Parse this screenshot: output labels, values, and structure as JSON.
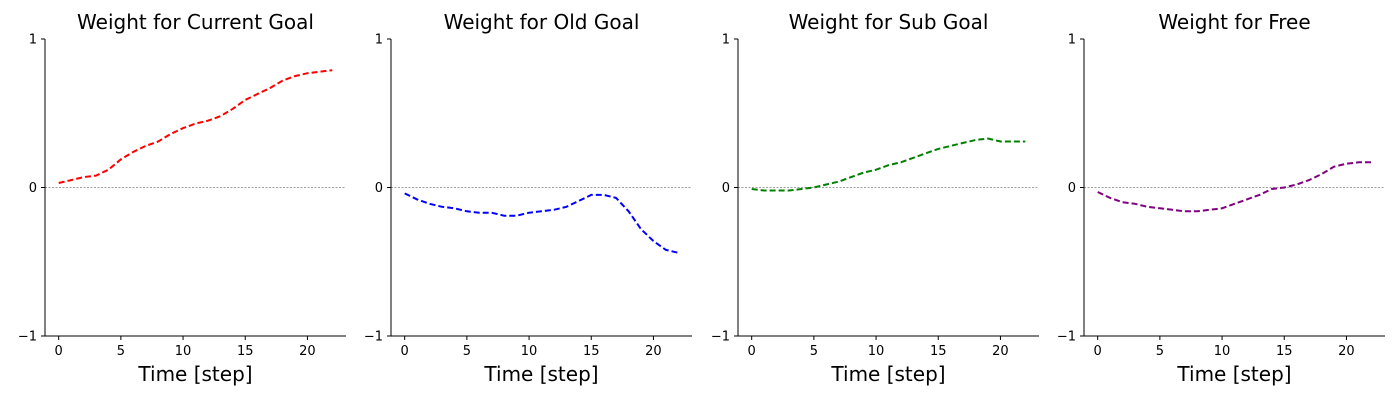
{
  "chart_data": [
    {
      "type": "line",
      "title": "Weight for Current Goal",
      "xlabel": "Time [step]",
      "ylabel": "",
      "xlim": [
        -1.1,
        23.1
      ],
      "ylim": [
        -1,
        1
      ],
      "xticks": [
        "0",
        "5",
        "10",
        "15",
        "20"
      ],
      "yticks": [
        "1",
        "0",
        "−1"
      ],
      "color": "#ff0000",
      "series": [
        {
          "x": [
            0,
            1,
            2,
            3,
            4,
            5,
            6,
            7,
            8,
            9,
            10,
            11,
            12,
            13,
            14,
            15,
            16,
            17,
            18,
            19,
            20,
            21,
            22
          ],
          "values": [
            0.03,
            0.05,
            0.07,
            0.08,
            0.12,
            0.19,
            0.24,
            0.28,
            0.31,
            0.36,
            0.4,
            0.43,
            0.45,
            0.48,
            0.53,
            0.59,
            0.63,
            0.67,
            0.72,
            0.75,
            0.77,
            0.78,
            0.79
          ]
        }
      ]
    },
    {
      "type": "line",
      "title": "Weight for Old Goal",
      "xlabel": "Time [step]",
      "ylabel": "",
      "xlim": [
        -1.1,
        23.1
      ],
      "ylim": [
        -1,
        1
      ],
      "xticks": [
        "0",
        "5",
        "10",
        "15",
        "20"
      ],
      "yticks": [
        "1",
        "0",
        "−1"
      ],
      "color": "#0000ff",
      "series": [
        {
          "x": [
            0,
            1,
            2,
            3,
            4,
            5,
            6,
            7,
            8,
            9,
            10,
            11,
            12,
            13,
            14,
            15,
            16,
            17,
            18,
            19,
            20,
            21,
            22
          ],
          "values": [
            -0.04,
            -0.08,
            -0.11,
            -0.13,
            -0.14,
            -0.16,
            -0.17,
            -0.17,
            -0.19,
            -0.19,
            -0.17,
            -0.16,
            -0.15,
            -0.13,
            -0.09,
            -0.05,
            -0.05,
            -0.07,
            -0.16,
            -0.28,
            -0.36,
            -0.42,
            -0.44
          ]
        }
      ]
    },
    {
      "type": "line",
      "title": "Weight for Sub Goal",
      "xlabel": "Time [step]",
      "ylabel": "",
      "xlim": [
        -1.1,
        23.1
      ],
      "ylim": [
        -1,
        1
      ],
      "xticks": [
        "0",
        "5",
        "10",
        "15",
        "20"
      ],
      "yticks": [
        "1",
        "0",
        "−1"
      ],
      "color": "#008000",
      "series": [
        {
          "x": [
            0,
            1,
            2,
            3,
            4,
            5,
            6,
            7,
            8,
            9,
            10,
            11,
            12,
            13,
            14,
            15,
            16,
            17,
            18,
            19,
            20,
            21,
            22
          ],
          "values": [
            -0.01,
            -0.02,
            -0.02,
            -0.02,
            -0.01,
            0.0,
            0.02,
            0.04,
            0.07,
            0.1,
            0.12,
            0.15,
            0.17,
            0.2,
            0.23,
            0.26,
            0.28,
            0.3,
            0.32,
            0.33,
            0.31,
            0.31,
            0.31
          ]
        }
      ]
    },
    {
      "type": "line",
      "title": "Weight for Free",
      "xlabel": "Time [step]",
      "ylabel": "",
      "xlim": [
        -1.1,
        23.1
      ],
      "ylim": [
        -1,
        1
      ],
      "xticks": [
        "0",
        "5",
        "10",
        "15",
        "20"
      ],
      "yticks": [
        "1",
        "0",
        "−1"
      ],
      "color": "#800080",
      "series": [
        {
          "x": [
            0,
            1,
            2,
            3,
            4,
            5,
            6,
            7,
            8,
            9,
            10,
            11,
            12,
            13,
            14,
            15,
            16,
            17,
            18,
            19,
            20,
            21,
            22
          ],
          "values": [
            -0.03,
            -0.07,
            -0.1,
            -0.11,
            -0.13,
            -0.14,
            -0.15,
            -0.16,
            -0.16,
            -0.15,
            -0.14,
            -0.11,
            -0.08,
            -0.05,
            -0.01,
            0.0,
            0.02,
            0.05,
            0.09,
            0.14,
            0.16,
            0.17,
            0.17
          ]
        }
      ]
    }
  ]
}
